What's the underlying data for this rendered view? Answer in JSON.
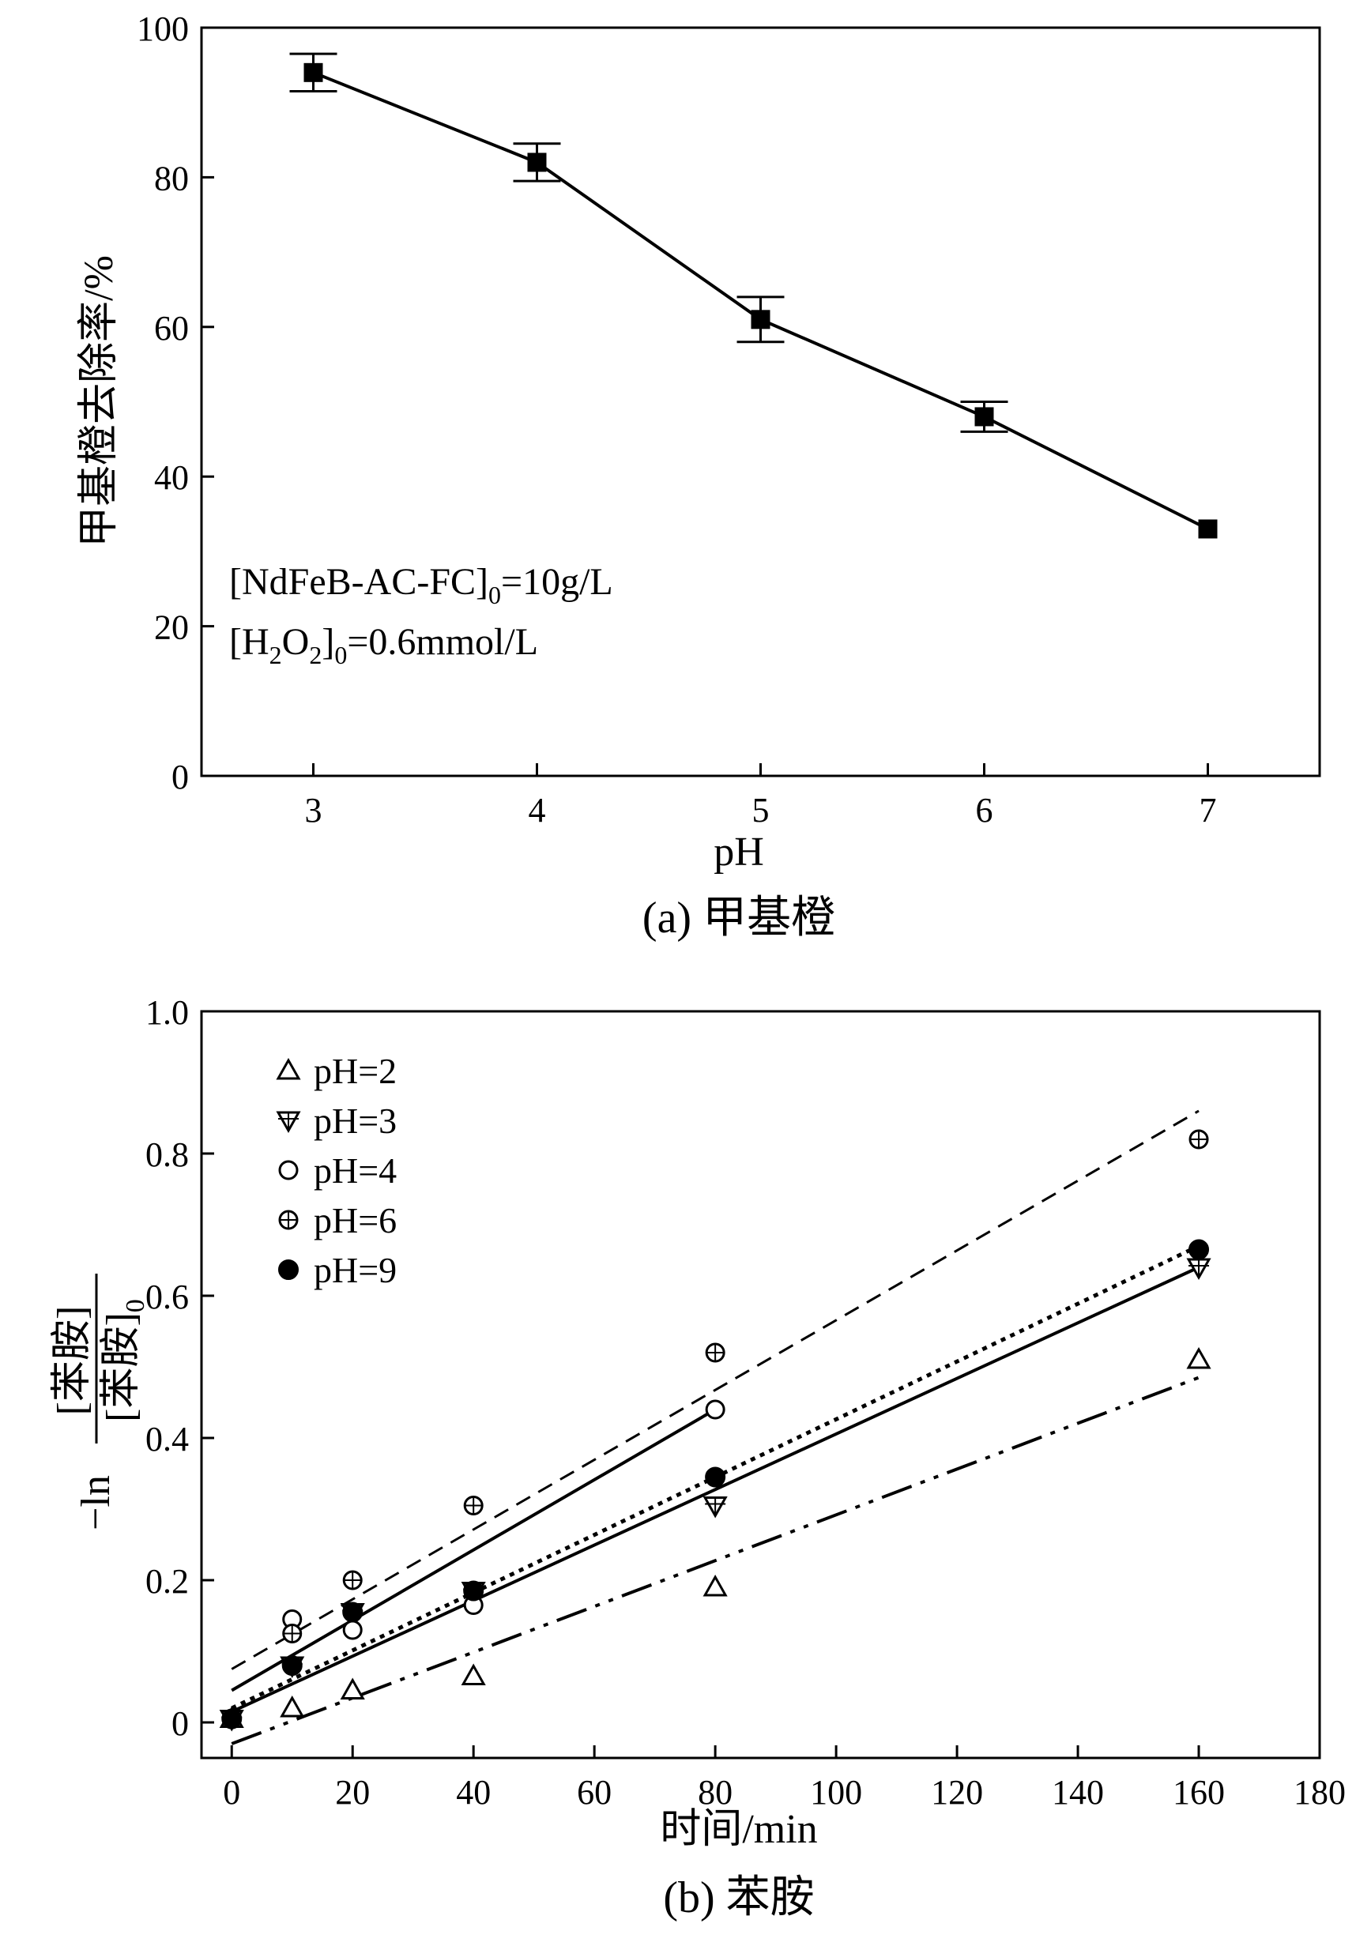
{
  "chart_data": [
    {
      "type": "line",
      "panel_caption": "(a) 甲基橙",
      "xlabel": "pH",
      "ylabel": "甲基橙去除率/%",
      "xlim": [
        2.5,
        7.5
      ],
      "ylim": [
        0,
        100
      ],
      "xticks": [
        3,
        4,
        5,
        6,
        7
      ],
      "yticks": [
        0,
        20,
        40,
        60,
        80,
        100
      ],
      "series": [
        {
          "name": "甲基橙去除率",
          "x": [
            3,
            4,
            5,
            6,
            7
          ],
          "values": [
            94,
            82,
            61,
            48,
            33
          ],
          "errors": [
            2.5,
            2.5,
            3,
            2,
            0
          ]
        }
      ],
      "annotations": [
        {
          "text": "[NdFeB-AC-FC]",
          "sub": "0",
          "tail": "=10g/L"
        },
        {
          "text": "[H",
          "sub1": "2",
          "mid": "O",
          "sub2": "2",
          "tail1": "]",
          "sub3": "0",
          "tail2": "=0.6mmol/L"
        }
      ]
    },
    {
      "type": "scatter",
      "panel_caption": "(b) 苯胺",
      "xlabel": "时间/min",
      "ylabel_prefix": "−ln",
      "ylabel_num": "[苯胺]",
      "ylabel_den": "[苯胺]",
      "ylabel_den_sub": "0",
      "xlim": [
        -5,
        180
      ],
      "ylim": [
        -0.05,
        1.0
      ],
      "xticks": [
        0,
        20,
        40,
        60,
        80,
        100,
        120,
        140,
        160,
        180
      ],
      "yticks": [
        0,
        0.2,
        0.4,
        0.6,
        0.8,
        1.0
      ],
      "ytick_labels": [
        "0",
        "0.2",
        "0.4",
        "0.6",
        "0.8",
        "1.0"
      ],
      "legend_position": "top-left",
      "series": [
        {
          "name": "pH=2",
          "marker": "triangle-up",
          "x": [
            0,
            10,
            20,
            40,
            80,
            160
          ],
          "values": [
            0.005,
            0.02,
            0.045,
            0.065,
            0.19,
            0.51
          ],
          "fit": [
            [
              0,
              -0.03
            ],
            [
              160,
              0.485
            ]
          ],
          "line_style": "dashdotdot"
        },
        {
          "name": "pH=3",
          "marker": "triangle-down-plus",
          "x": [
            0,
            10,
            20,
            40,
            80,
            160
          ],
          "values": [
            0.005,
            0.08,
            0.155,
            0.185,
            0.305,
            0.64
          ],
          "fit": [
            [
              0,
              0.015
            ],
            [
              160,
              0.64
            ]
          ],
          "line_style": "solid"
        },
        {
          "name": "pH=4",
          "marker": "circle-open",
          "x": [
            0,
            10,
            20,
            40,
            80
          ],
          "values": [
            0.005,
            0.145,
            0.13,
            0.165,
            0.44
          ],
          "fit": [
            [
              0,
              0.045
            ],
            [
              80,
              0.44
            ]
          ],
          "line_style": "solid"
        },
        {
          "name": "pH=6",
          "marker": "circle-plus",
          "x": [
            0,
            10,
            20,
            40,
            80,
            160
          ],
          "values": [
            0.005,
            0.125,
            0.2,
            0.305,
            0.52,
            0.82
          ],
          "fit": [
            [
              0,
              0.075
            ],
            [
              160,
              0.86
            ]
          ],
          "line_style": "dashed"
        },
        {
          "name": "pH=9",
          "marker": "circle-filled",
          "x": [
            0,
            10,
            20,
            40,
            80,
            160
          ],
          "values": [
            0.005,
            0.08,
            0.155,
            0.185,
            0.345,
            0.665
          ],
          "fit": [
            [
              0,
              0.02
            ],
            [
              160,
              0.67
            ]
          ],
          "line_style": "dotted"
        }
      ]
    }
  ]
}
